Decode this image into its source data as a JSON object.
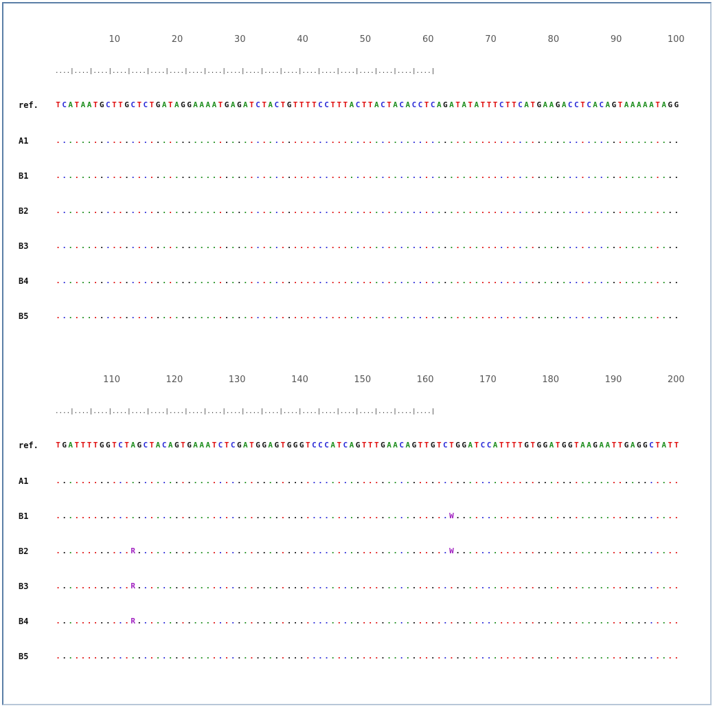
{
  "colors": {
    "A": "#1e8e1e",
    "C": "#2a2ad8",
    "G": "#111111",
    "T": "#e01010",
    "ambiguous": "#a020c0"
  },
  "ruler_tick_string": "....|....|....|....|....|....|....|....|....|....|....|....|....|....|....|....|....|....|....|....|",
  "blocks": [
    {
      "ruler": [
        "10",
        "20",
        "30",
        "40",
        "50",
        "60",
        "70",
        "80",
        "90",
        "100"
      ],
      "ref_label": "ref.",
      "ref_seq": "TCATAATGCTTGCTCTGATAGGAAAATGAGATCTACTGTTTTCCTTTACTTACTACACCTCAGATATATTTCTTCATGAAGACCTCACAGTAAAAATAGG",
      "samples": [
        {
          "label": "A1",
          "variants": {}
        },
        {
          "label": "B1",
          "variants": {}
        },
        {
          "label": "B2",
          "variants": {}
        },
        {
          "label": "B3",
          "variants": {}
        },
        {
          "label": "B4",
          "variants": {}
        },
        {
          "label": "B5",
          "variants": {}
        }
      ]
    },
    {
      "ruler": [
        "110",
        "120",
        "130",
        "140",
        "150",
        "160",
        "170",
        "180",
        "190",
        "200"
      ],
      "ref_label": "ref.",
      "ref_seq": "TGATTTTGGTCTAGCTACAGTGAAATCTCGATGGAGTGGGTCCCATCAGTTTGAACAGTTGTCTGGATCCATTTTGTGGATGGTAAGAATTGAGGCTATT",
      "samples": [
        {
          "label": "A1",
          "variants": {}
        },
        {
          "label": "B1",
          "variants": {
            "63": "W"
          }
        },
        {
          "label": "B2",
          "variants": {
            "12": "R",
            "63": "W"
          }
        },
        {
          "label": "B3",
          "variants": {
            "12": "R"
          }
        },
        {
          "label": "B4",
          "variants": {
            "12": "R"
          }
        },
        {
          "label": "B5",
          "variants": {}
        }
      ]
    }
  ]
}
